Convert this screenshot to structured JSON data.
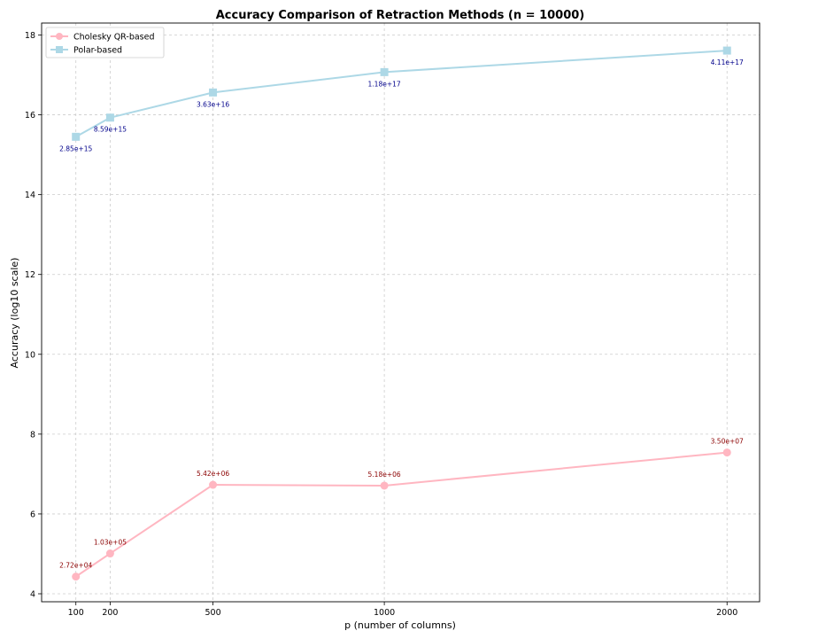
{
  "chart_data": {
    "type": "line",
    "title": "Accuracy Comparison of Retraction Methods (n = 10000)",
    "xlabel": "p (number of columns)",
    "ylabel": "Accuracy (log10 scale)",
    "x": [
      100,
      200,
      500,
      1000,
      2000
    ],
    "x_ticks": [
      "100",
      "200",
      "500",
      "1000",
      "2000"
    ],
    "y_ticks": [
      "4",
      "6",
      "8",
      "10",
      "12",
      "14",
      "16",
      "18"
    ],
    "xlim": [
      0,
      2095
    ],
    "ylim": [
      3.8,
      18.3
    ],
    "grid": true,
    "legend_position": "top-left",
    "series": [
      {
        "name": "Cholesky QR-based",
        "marker": "circle",
        "color": "#ffb6c1",
        "label_color": "#8b0000",
        "values": [
          4.43,
          5.01,
          6.73,
          6.71,
          7.54
        ],
        "labels": [
          "2.72e+04",
          "1.03e+05",
          "5.42e+06",
          "5.18e+06",
          "3.50e+07"
        ],
        "label_side": "above"
      },
      {
        "name": "Polar-based",
        "marker": "square",
        "color": "#add8e6",
        "label_color": "#00008b",
        "values": [
          15.45,
          15.93,
          16.56,
          17.07,
          17.61
        ],
        "labels": [
          "2.85e+15",
          "8.59e+15",
          "3.63e+16",
          "1.18e+17",
          "4.11e+17"
        ],
        "label_side": "below"
      }
    ]
  }
}
